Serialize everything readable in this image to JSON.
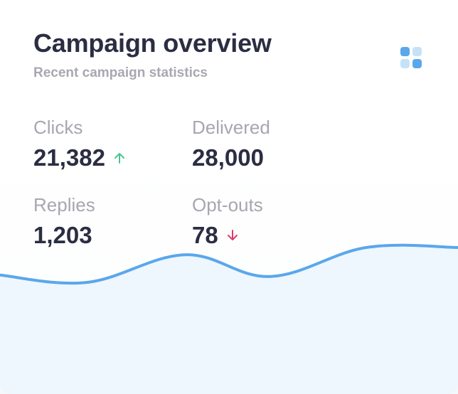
{
  "card": {
    "title": "Campaign overview",
    "subtitle": "Recent campaign statistics",
    "menu_icon": "grid-icon"
  },
  "stats": [
    {
      "label": "Clicks",
      "value": "21,382",
      "trend": "up"
    },
    {
      "label": "Delivered",
      "value": "28,000",
      "trend": null
    },
    {
      "label": "Replies",
      "value": "1,203",
      "trend": null
    },
    {
      "label": "Opt-outs",
      "value": "78",
      "trend": "down"
    }
  ],
  "colors": {
    "line": "#5aa7ec",
    "fill": "#eef6fe",
    "trend_up": "#4cc592",
    "trend_down": "#e3386b",
    "icon_dark": "#5aa7ec",
    "icon_light": "#c7e1f9"
  },
  "chart_data": {
    "type": "area",
    "values": [
      62,
      52,
      90,
      60,
      100,
      100
    ],
    "title": "",
    "xlabel": "",
    "ylabel": "",
    "ylim": [
      0,
      100
    ],
    "grid": false
  }
}
